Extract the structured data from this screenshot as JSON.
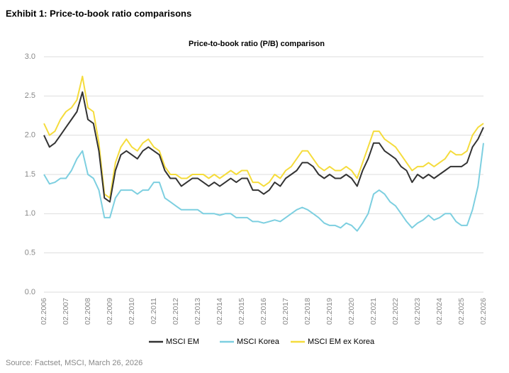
{
  "header": {
    "title": "Exhibit 1: Price-to-book ratio comparisons"
  },
  "chart_data": {
    "type": "line",
    "title": "Price-to-book ratio (P/B) comparison",
    "categories": [
      "02.2006",
      null,
      null,
      null,
      "02.2007",
      null,
      null,
      null,
      "02.2008",
      null,
      null,
      null,
      "02.2009",
      null,
      null,
      null,
      "02.2010",
      null,
      null,
      null,
      "02.2011",
      null,
      null,
      null,
      "02.2012",
      null,
      null,
      null,
      "02.2013",
      null,
      null,
      null,
      "02.2014",
      null,
      null,
      null,
      "02.2015",
      null,
      null,
      null,
      "02.2016",
      null,
      null,
      null,
      "02.2017",
      null,
      null,
      null,
      "02.2018",
      null,
      null,
      null,
      "02.2019",
      null,
      null,
      null,
      "02.2020",
      null,
      null,
      null,
      "02.2021",
      null,
      null,
      null,
      "02.2022",
      null,
      null,
      null,
      "02.2023",
      null,
      null,
      null,
      "02.2024",
      null,
      null,
      null,
      "02.2025",
      null,
      null,
      null,
      "02.2026"
    ],
    "series": [
      {
        "name": "MSCI EM",
        "color": "#333333",
        "values": [
          2.0,
          1.85,
          1.9,
          2.0,
          2.1,
          2.2,
          2.3,
          2.55,
          2.2,
          2.15,
          1.8,
          1.2,
          1.15,
          1.55,
          1.75,
          1.8,
          1.75,
          1.7,
          1.8,
          1.85,
          1.8,
          1.75,
          1.55,
          1.45,
          1.45,
          1.35,
          1.4,
          1.45,
          1.45,
          1.4,
          1.35,
          1.4,
          1.35,
          1.4,
          1.45,
          1.4,
          1.45,
          1.45,
          1.3,
          1.3,
          1.25,
          1.3,
          1.4,
          1.35,
          1.45,
          1.5,
          1.55,
          1.65,
          1.65,
          1.6,
          1.5,
          1.45,
          1.5,
          1.45,
          1.45,
          1.5,
          1.45,
          1.35,
          1.55,
          1.7,
          1.9,
          1.9,
          1.8,
          1.75,
          1.7,
          1.6,
          1.55,
          1.4,
          1.5,
          1.45,
          1.5,
          1.45,
          1.5,
          1.55,
          1.6,
          1.6,
          1.6,
          1.65,
          1.85,
          1.95,
          2.1
        ]
      },
      {
        "name": "MSCI Korea",
        "color": "#7dcfe0",
        "values": [
          1.5,
          1.38,
          1.4,
          1.45,
          1.45,
          1.55,
          1.7,
          1.8,
          1.5,
          1.45,
          1.3,
          0.95,
          0.95,
          1.2,
          1.3,
          1.3,
          1.3,
          1.25,
          1.3,
          1.3,
          1.4,
          1.4,
          1.2,
          1.15,
          1.1,
          1.05,
          1.05,
          1.05,
          1.05,
          1.0,
          1.0,
          1.0,
          0.98,
          1.0,
          1.0,
          0.95,
          0.95,
          0.95,
          0.9,
          0.9,
          0.88,
          0.9,
          0.92,
          0.9,
          0.95,
          1.0,
          1.05,
          1.08,
          1.05,
          1.0,
          0.95,
          0.88,
          0.85,
          0.85,
          0.82,
          0.88,
          0.85,
          0.78,
          0.88,
          1.0,
          1.25,
          1.3,
          1.25,
          1.15,
          1.1,
          1.0,
          0.9,
          0.82,
          0.88,
          0.92,
          0.98,
          0.92,
          0.95,
          1.0,
          1.0,
          0.9,
          0.85,
          0.85,
          1.05,
          1.35,
          1.9
        ]
      },
      {
        "name": "MSCI EM ex Korea",
        "color": "#f5dc3c",
        "values": [
          2.15,
          2.0,
          2.05,
          2.2,
          2.3,
          2.35,
          2.45,
          2.75,
          2.35,
          2.3,
          1.9,
          1.25,
          1.2,
          1.65,
          1.85,
          1.95,
          1.85,
          1.8,
          1.9,
          1.95,
          1.85,
          1.8,
          1.6,
          1.5,
          1.5,
          1.45,
          1.45,
          1.5,
          1.5,
          1.5,
          1.45,
          1.5,
          1.45,
          1.5,
          1.55,
          1.5,
          1.55,
          1.55,
          1.4,
          1.4,
          1.35,
          1.4,
          1.5,
          1.45,
          1.55,
          1.6,
          1.7,
          1.8,
          1.8,
          1.7,
          1.6,
          1.55,
          1.6,
          1.55,
          1.55,
          1.6,
          1.55,
          1.45,
          1.65,
          1.85,
          2.05,
          2.05,
          1.95,
          1.9,
          1.85,
          1.75,
          1.65,
          1.55,
          1.6,
          1.6,
          1.65,
          1.6,
          1.65,
          1.7,
          1.8,
          1.75,
          1.75,
          1.8,
          2.0,
          2.1,
          2.15
        ]
      }
    ],
    "ylim": [
      0,
      3
    ],
    "yticks": [
      {
        "value": 0,
        "label": "0.0"
      },
      0.5,
      {
        "value": 1,
        "label": "1.0"
      },
      1.5,
      {
        "value": 2,
        "label": "2.0"
      },
      2.5,
      {
        "value": 3,
        "label": "3.0"
      }
    ],
    "grid": true,
    "legend": "bottom"
  },
  "source": "Source: Factset, MSCI, March 26, 2026"
}
